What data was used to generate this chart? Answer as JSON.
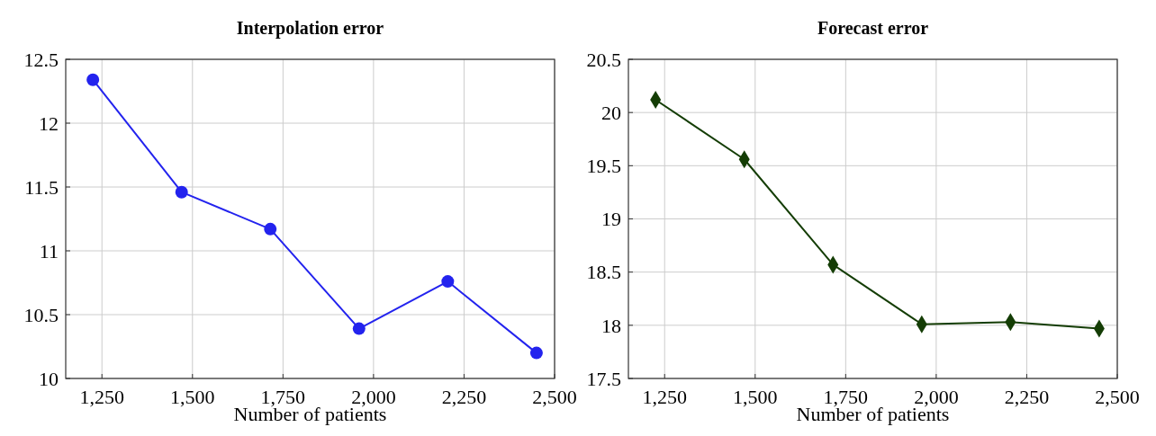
{
  "chart_data": [
    {
      "type": "line",
      "title": "Interpolation error",
      "xlabel": "Number of patients",
      "x": [
        1225,
        1470,
        1715,
        1960,
        2205,
        2450
      ],
      "xlim": [
        1150,
        2500
      ],
      "xticks": [
        {
          "value": 1250,
          "label": "1,250"
        },
        {
          "value": 1500,
          "label": "1,500"
        },
        {
          "value": 1750,
          "label": "1,750"
        },
        {
          "value": 2000,
          "label": "2,000"
        },
        {
          "value": 2250,
          "label": "2,250"
        },
        {
          "value": 2500,
          "label": "2,500"
        }
      ],
      "ylim": [
        10,
        12.5
      ],
      "yticks": [
        10,
        10.5,
        11,
        11.5,
        12,
        12.5
      ],
      "grid": true,
      "marker": "circle",
      "line_style": "solid",
      "series": [
        {
          "color": "#2323ee",
          "values": [
            12.34,
            11.46,
            11.17,
            10.39,
            10.76,
            10.2
          ]
        }
      ]
    },
    {
      "type": "line",
      "title": "Forecast error",
      "xlabel": "Number of patients",
      "x": [
        1225,
        1470,
        1715,
        1960,
        2205,
        2450
      ],
      "xlim": [
        1150,
        2500
      ],
      "xticks": [
        {
          "value": 1250,
          "label": "1,250"
        },
        {
          "value": 1500,
          "label": "1,500"
        },
        {
          "value": 1750,
          "label": "1,750"
        },
        {
          "value": 2000,
          "label": "2,000"
        },
        {
          "value": 2250,
          "label": "2,250"
        },
        {
          "value": 2500,
          "label": "2,500"
        }
      ],
      "ylim": [
        17.5,
        20.5
      ],
      "yticks": [
        17.5,
        18,
        18.5,
        19,
        19.5,
        20,
        20.5
      ],
      "grid": true,
      "marker": "diamond",
      "line_style": "solid",
      "series": [
        {
          "color": "#143d05",
          "values": [
            20.12,
            19.56,
            18.57,
            18.01,
            18.03,
            17.97
          ]
        }
      ]
    }
  ]
}
